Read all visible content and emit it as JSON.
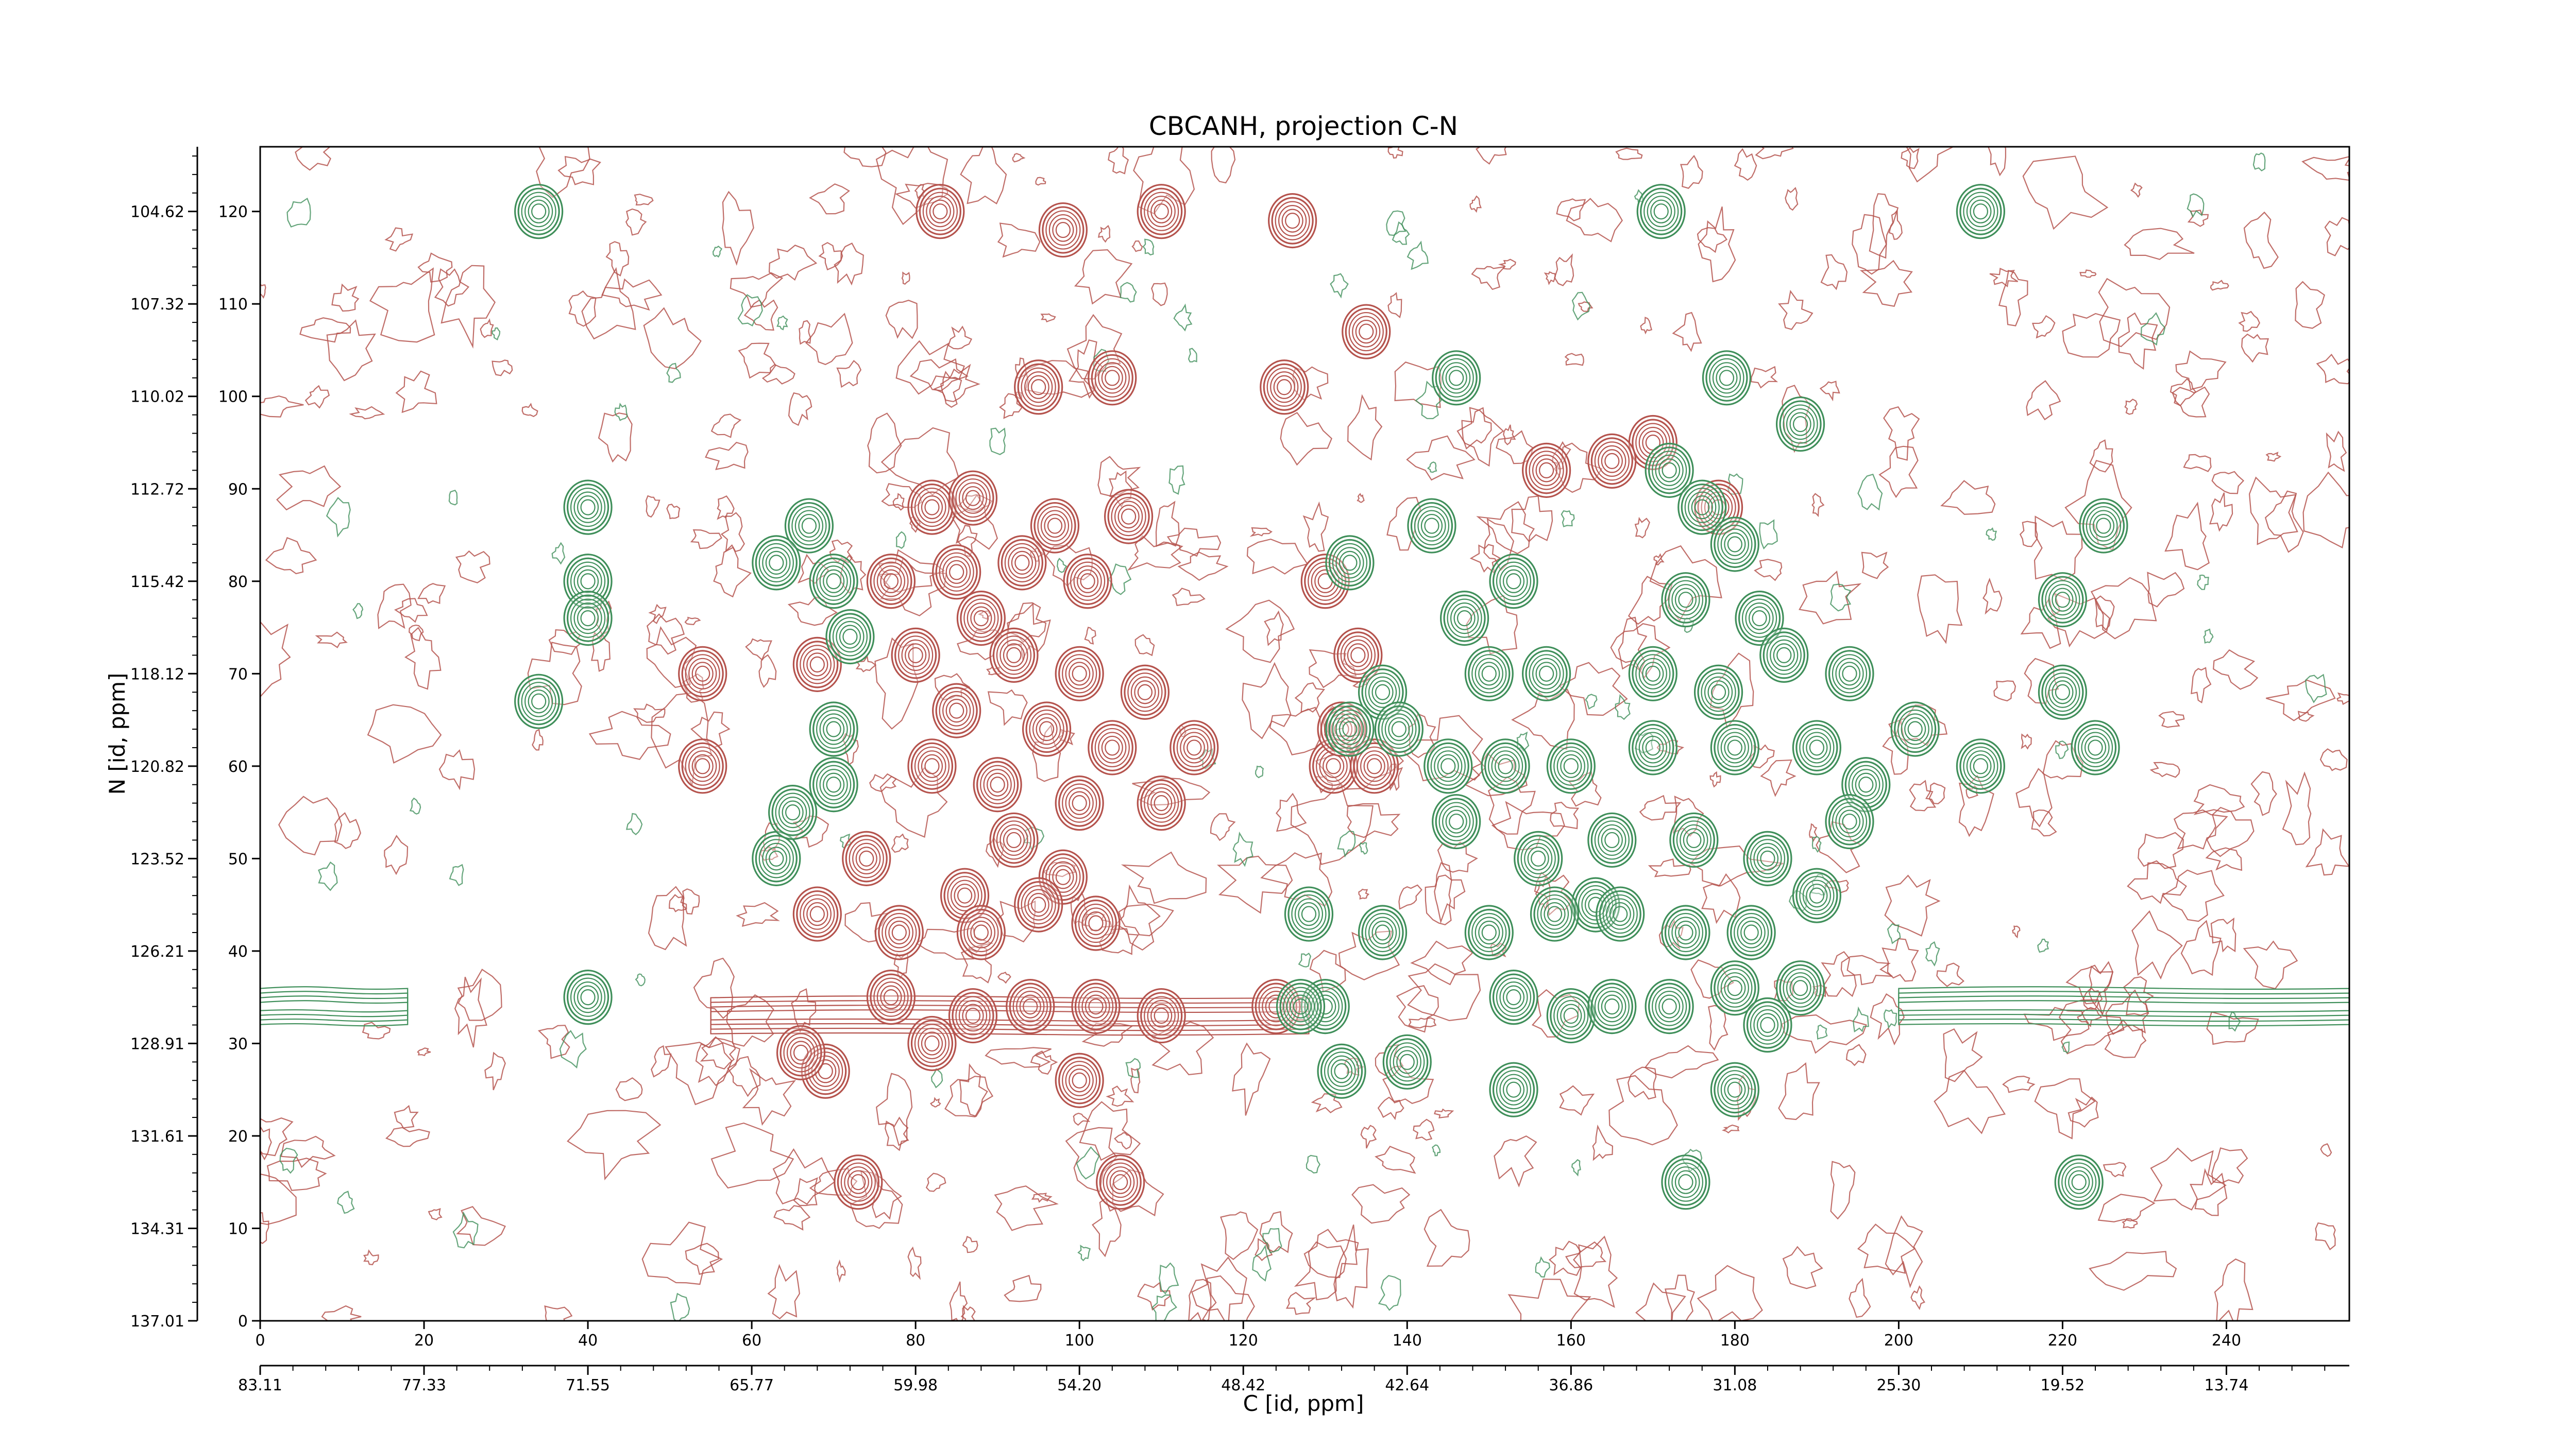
{
  "chart_data": {
    "type": "contour",
    "title": "CBCANH, projection C-N",
    "xlabel": "C [id, ppm]",
    "ylabel": "N [id, ppm]",
    "xlim": [
      0,
      255
    ],
    "ylim": [
      0,
      127
    ],
    "x_index_ticks": [
      "0",
      "20",
      "40",
      "60",
      "80",
      "100",
      "120",
      "140",
      "160",
      "180",
      "200",
      "220",
      "240"
    ],
    "y_index_ticks": [
      "0",
      "10",
      "20",
      "30",
      "40",
      "50",
      "60",
      "70",
      "80",
      "90",
      "100",
      "110",
      "120"
    ],
    "x_ppm_ticks": [
      "83.11",
      "77.33",
      "71.55",
      "65.77",
      "59.98",
      "54.20",
      "48.42",
      "42.64",
      "36.86",
      "31.08",
      "25.30",
      "19.52",
      "13.74"
    ],
    "y_ppm_ticks": [
      "137.01",
      "134.31",
      "131.61",
      "128.91",
      "126.21",
      "123.52",
      "120.82",
      "118.12",
      "115.42",
      "112.72",
      "110.02",
      "107.32",
      "104.62"
    ],
    "colors": {
      "negative": "#b5534d",
      "positive": "#3f8f5a"
    },
    "series": [
      {
        "sign": "negative",
        "peaks": [
          [
            83,
            120
          ],
          [
            98,
            118
          ],
          [
            110,
            120
          ],
          [
            126,
            119
          ],
          [
            135,
            107
          ],
          [
            125,
            101
          ],
          [
            95,
            101
          ],
          [
            104,
            102
          ],
          [
            82,
            88
          ],
          [
            87,
            89
          ],
          [
            97,
            86
          ],
          [
            106,
            87
          ],
          [
            77,
            80
          ],
          [
            85,
            81
          ],
          [
            93,
            82
          ],
          [
            101,
            80
          ],
          [
            88,
            76
          ],
          [
            80,
            72
          ],
          [
            92,
            72
          ],
          [
            100,
            70
          ],
          [
            108,
            68
          ],
          [
            85,
            66
          ],
          [
            96,
            64
          ],
          [
            104,
            62
          ],
          [
            114,
            62
          ],
          [
            82,
            60
          ],
          [
            90,
            58
          ],
          [
            100,
            56
          ],
          [
            110,
            56
          ],
          [
            92,
            52
          ],
          [
            98,
            48
          ],
          [
            74,
            50
          ],
          [
            86,
            46
          ],
          [
            95,
            45
          ],
          [
            102,
            43
          ],
          [
            68,
            44
          ],
          [
            78,
            42
          ],
          [
            88,
            42
          ],
          [
            77,
            35
          ],
          [
            87,
            33
          ],
          [
            94,
            34
          ],
          [
            102,
            34
          ],
          [
            110,
            33
          ],
          [
            69,
            27
          ],
          [
            82,
            30
          ],
          [
            100,
            26
          ],
          [
            66,
            29
          ],
          [
            73,
            15
          ],
          [
            105,
            15
          ],
          [
            54,
            70
          ],
          [
            54,
            60
          ],
          [
            68,
            71
          ],
          [
            131,
            60
          ],
          [
            132,
            64
          ],
          [
            136,
            60
          ],
          [
            130,
            80
          ],
          [
            134,
            72
          ],
          [
            124,
            34
          ],
          [
            157,
            92
          ],
          [
            170,
            95
          ],
          [
            165,
            93
          ],
          [
            178,
            88
          ]
        ]
      },
      {
        "sign": "positive",
        "peaks": [
          [
            34,
            120
          ],
          [
            40,
            88
          ],
          [
            40,
            80
          ],
          [
            40,
            76
          ],
          [
            34,
            67
          ],
          [
            40,
            35
          ],
          [
            67,
            86
          ],
          [
            63,
            82
          ],
          [
            70,
            80
          ],
          [
            72,
            74
          ],
          [
            70,
            64
          ],
          [
            70,
            58
          ],
          [
            63,
            50
          ],
          [
            133,
            82
          ],
          [
            137,
            68
          ],
          [
            133,
            64
          ],
          [
            139,
            64
          ],
          [
            143,
            86
          ],
          [
            147,
            76
          ],
          [
            153,
            80
          ],
          [
            150,
            70
          ],
          [
            157,
            70
          ],
          [
            145,
            60
          ],
          [
            152,
            60
          ],
          [
            160,
            60
          ],
          [
            146,
            54
          ],
          [
            156,
            50
          ],
          [
            163,
            45
          ],
          [
            150,
            42
          ],
          [
            158,
            44
          ],
          [
            137,
            42
          ],
          [
            153,
            35
          ],
          [
            160,
            33
          ],
          [
            165,
            34
          ],
          [
            153,
            25
          ],
          [
            130,
            34
          ],
          [
            132,
            27
          ],
          [
            140,
            28
          ],
          [
            172,
            92
          ],
          [
            176,
            88
          ],
          [
            180,
            84
          ],
          [
            174,
            78
          ],
          [
            183,
            76
          ],
          [
            170,
            70
          ],
          [
            178,
            68
          ],
          [
            186,
            72
          ],
          [
            194,
            70
          ],
          [
            202,
            64
          ],
          [
            170,
            62
          ],
          [
            180,
            62
          ],
          [
            190,
            62
          ],
          [
            196,
            58
          ],
          [
            175,
            52
          ],
          [
            184,
            50
          ],
          [
            190,
            46
          ],
          [
            166,
            44
          ],
          [
            174,
            42
          ],
          [
            182,
            42
          ],
          [
            180,
            36
          ],
          [
            188,
            36
          ],
          [
            172,
            34
          ],
          [
            184,
            32
          ],
          [
            180,
            25
          ],
          [
            174,
            15
          ],
          [
            179,
            102
          ],
          [
            188,
            97
          ],
          [
            171,
            120
          ],
          [
            210,
            120
          ],
          [
            146,
            102
          ],
          [
            210,
            60
          ],
          [
            220,
            68
          ],
          [
            224,
            62
          ],
          [
            220,
            78
          ],
          [
            225,
            86
          ],
          [
            222,
            15
          ],
          [
            194,
            54
          ],
          [
            128,
            44
          ],
          [
            127,
            34
          ],
          [
            165,
            52
          ],
          [
            65,
            55
          ]
        ]
      }
    ],
    "baseline_streaks": [
      {
        "sign": "negative",
        "x_range": [
          55,
          128
        ],
        "y": 33
      },
      {
        "sign": "positive",
        "x_range": [
          200,
          255
        ],
        "y": 34
      },
      {
        "sign": "positive",
        "x_range": [
          0,
          18
        ],
        "y": 34
      }
    ]
  }
}
